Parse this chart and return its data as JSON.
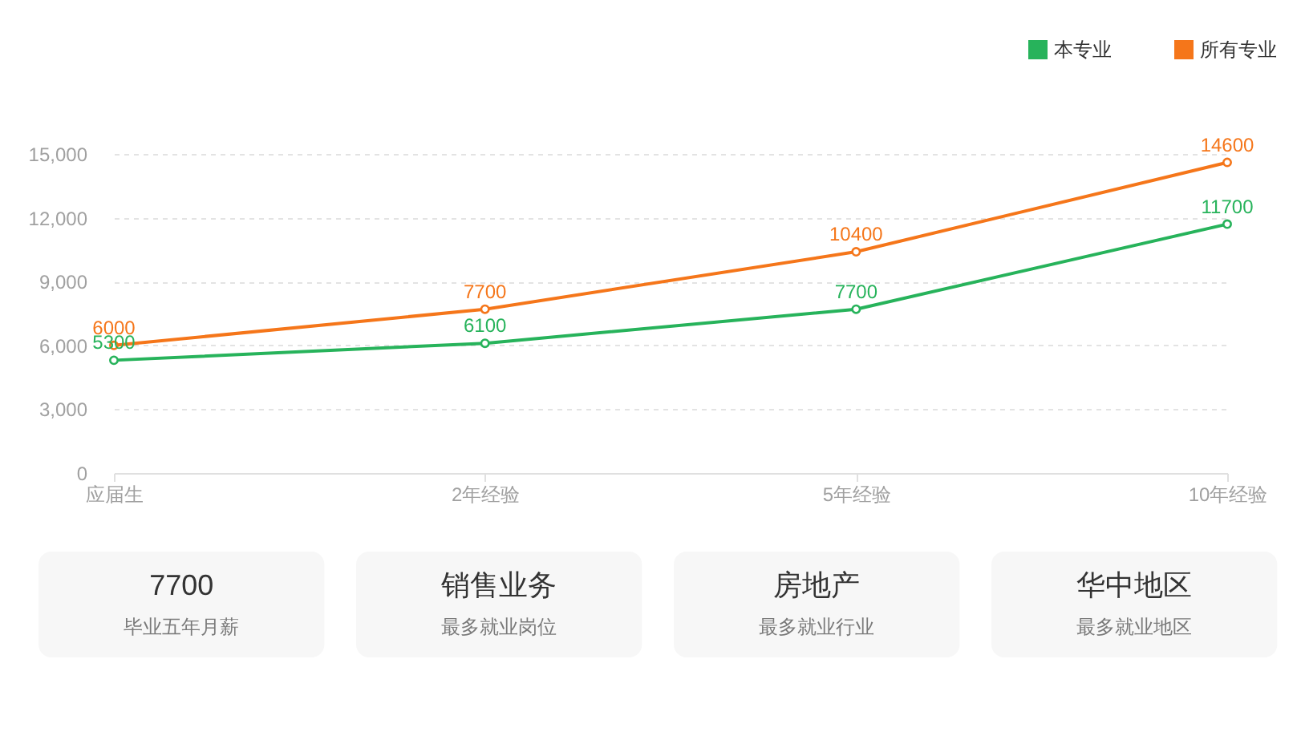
{
  "chart_data": [
    {
      "type": "line",
      "categories": [
        "应届生",
        "2年经验",
        "5年经验",
        "10年经验"
      ],
      "series": [
        {
          "name": "本专业",
          "color": "#27b35b",
          "values": [
            5300,
            6100,
            7700,
            11700
          ]
        },
        {
          "name": "所有专业",
          "color": "#f5761a",
          "values": [
            6000,
            7700,
            10400,
            14600
          ]
        }
      ],
      "ylim": [
        0,
        15000
      ],
      "yticks": [
        0,
        {
          "value": 3000,
          "label": "3,000"
        },
        {
          "value": 6000,
          "label": "6,000"
        },
        {
          "value": 9000,
          "label": "9,000"
        },
        {
          "value": 12000,
          "label": "12,000"
        },
        {
          "value": 15000,
          "label": "15,000"
        }
      ],
      "grid": "y",
      "legend": "top right",
      "marker": "circle",
      "data_labels": true
    },
    {
      "type": "other",
      "annotations": [
        "7700",
        "毕业五年月薪",
        "销售业务",
        "最多就业岗位",
        "房地产",
        "最多就业行业",
        "华中地区",
        "最多就业地区"
      ]
    }
  ]
}
